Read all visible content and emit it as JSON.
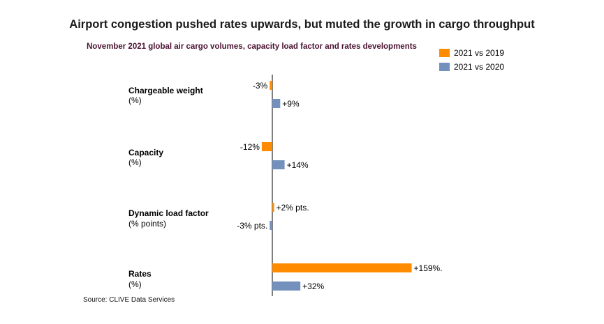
{
  "title": "Airport congestion pushed rates upwards, but muted the growth in cargo throughput",
  "subtitle": "November 2021 global air cargo volumes, capacity load factor and rates developments",
  "source": "Source: CLIVE Data Services",
  "colors": {
    "series_2019": "#FF8C00",
    "series_2020": "#7391BC",
    "axis": "#000000"
  },
  "chart_data": {
    "type": "bar",
    "orientation": "horizontal",
    "title": "Airport congestion pushed rates upwards, but muted the growth in cargo throughput",
    "subtitle": "November 2021 global air cargo volumes, capacity load factor and rates developments",
    "categories": [
      "Chargeable weight",
      "Capacity",
      "Dynamic load factor",
      "Rates"
    ],
    "category_units": [
      "(%)",
      "(%)",
      "(% points)",
      "(%)"
    ],
    "series": [
      {
        "name": "2021 vs 2019",
        "values": [
          -3,
          -12,
          2,
          159
        ],
        "labels": [
          "-3%",
          "-12%",
          "+2% pts.",
          "+159%."
        ]
      },
      {
        "name": "2021 vs 2020",
        "values": [
          9,
          14,
          -3,
          32
        ],
        "labels": [
          "+9%",
          "+14%",
          "-3% pts.",
          "+32%"
        ]
      }
    ],
    "legend_position": "top-right",
    "grid": false
  }
}
